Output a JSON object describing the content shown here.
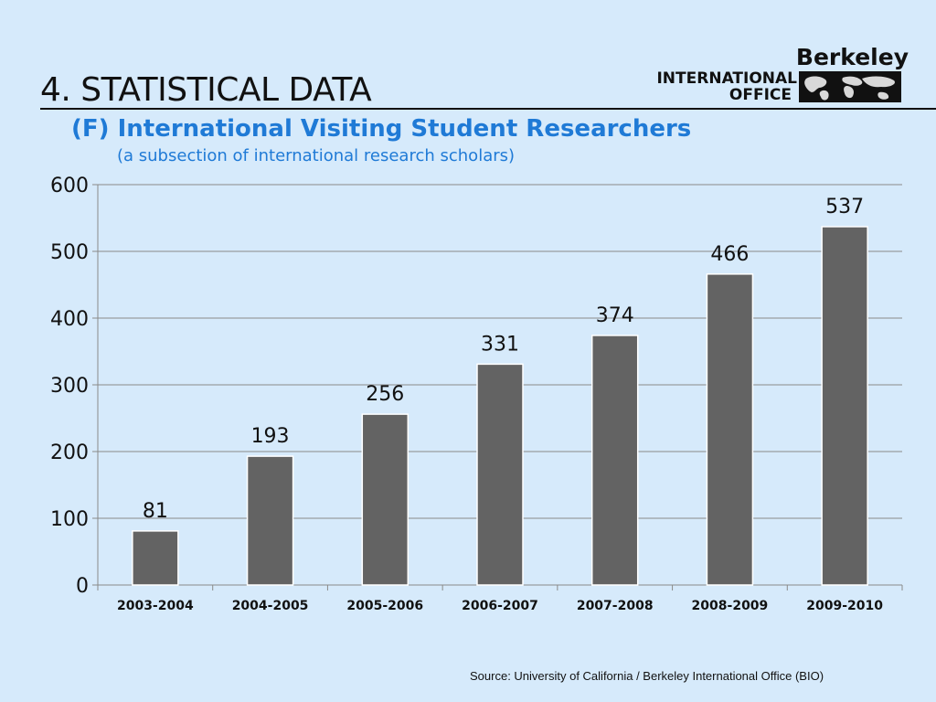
{
  "slide": {
    "title": "4. STATISTICAL DATA",
    "subtitle": "(F) International Visiting Student Researchers",
    "note": "(a subsection of international research scholars)",
    "source": "Source:  University of California / Berkeley International Office (BIO)"
  },
  "logo": {
    "name": "Berkeley",
    "line1": "INTERNATIONAL",
    "line2": "OFFICE",
    "icon": "world-map-icon"
  },
  "colors": {
    "background": "#d6eafb",
    "bar": "#636363",
    "bar_border": "#ffffff",
    "grid": "#8a8a8a",
    "title_text": "#111111",
    "accent": "#1f7ad6"
  },
  "chart_data": {
    "type": "bar",
    "categories": [
      "2003-2004",
      "2004-2005",
      "2005-2006",
      "2006-2007",
      "2007-2008",
      "2008-2009",
      "2009-2010"
    ],
    "values": [
      81,
      193,
      256,
      331,
      374,
      466,
      537
    ],
    "ylim": [
      0,
      600
    ],
    "yticks": [
      0,
      100,
      200,
      300,
      400,
      500,
      600
    ],
    "grid": true,
    "data_labels": true,
    "legend": "none"
  }
}
